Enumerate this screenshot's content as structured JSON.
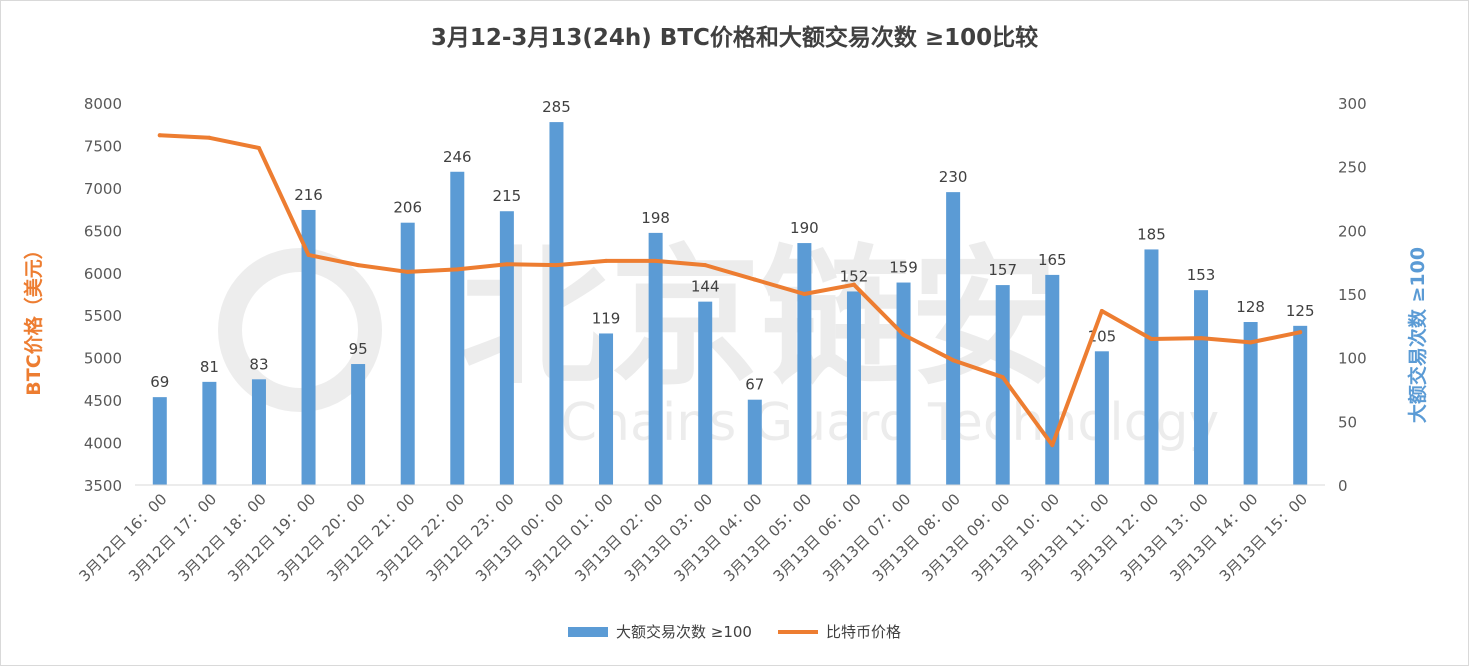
{
  "chart_data": {
    "type": "bar+line",
    "title": "3月12-3月13(24h) BTC价格和大额交易次数 ≥100比较",
    "categories": [
      "3月12日 16：00",
      "3月12日 17：00",
      "3月12日 18：00",
      "3月12日 19：00",
      "3月12日 20：00",
      "3月12日 21：00",
      "3月12日 22：00",
      "3月12日 23：00",
      "3月13日 00：00",
      "3月12日 01：00",
      "3月13日 02：00",
      "3月13日 03：00",
      "3月13日 04：00",
      "3月13日 05：00",
      "3月13日 06：00",
      "3月13日 07：00",
      "3月13日 08：00",
      "3月13日 09：00",
      "3月13日 10：00",
      "3月13日 11：00",
      "3月13日 12：00",
      "3月13日 13：00",
      "3月13日 14：00",
      "3月13日 15：00"
    ],
    "series": [
      {
        "name": "大额交易次数 ≥100",
        "type": "bar",
        "axis": "right",
        "color": "#5b9bd5",
        "values": [
          69,
          81,
          83,
          216,
          95,
          206,
          246,
          215,
          285,
          119,
          198,
          144,
          67,
          190,
          152,
          159,
          230,
          157,
          165,
          105,
          185,
          153,
          128,
          125
        ]
      },
      {
        "name": "比特币价格",
        "type": "line",
        "axis": "left",
        "color": "#ed7d31",
        "values": [
          7620,
          7590,
          7470,
          6210,
          6090,
          6010,
          6040,
          6100,
          6090,
          6140,
          6140,
          6090,
          5920,
          5750,
          5860,
          5270,
          4970,
          4770,
          3970,
          5550,
          5220,
          5230,
          5180,
          5300
        ]
      }
    ],
    "ylabel_left": "BTC价格（美元）",
    "ylabel_right": "大额交易次数 ≥100",
    "ylim_left": [
      3500,
      8000
    ],
    "yticks_left": [
      "3500",
      "4000",
      "4500",
      "5000",
      "5500",
      "6000",
      "6500",
      "7000",
      "7500",
      "8000"
    ],
    "ylim_right": [
      0,
      300
    ],
    "yticks_right": [
      "0",
      "50",
      "100",
      "150",
      "200",
      "250",
      "300"
    ],
    "grid": false,
    "legend_position": "bottom",
    "watermark": "北京链安 Chains Guard Technology"
  }
}
